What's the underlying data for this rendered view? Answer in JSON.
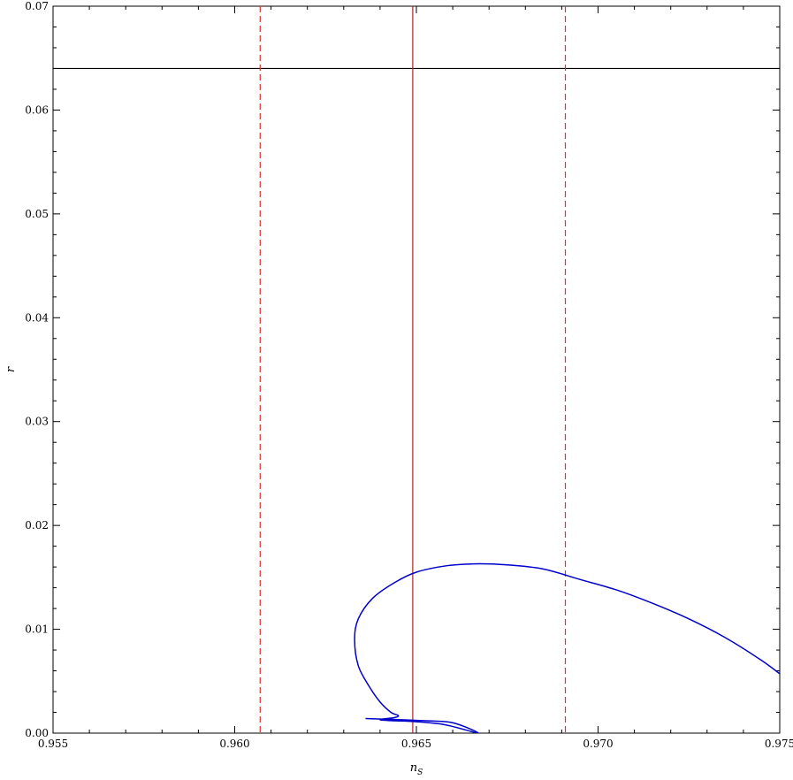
{
  "chart_data": {
    "type": "line",
    "title": "",
    "xlabel": "n",
    "xlabel_sub": "S",
    "ylabel": "r",
    "xlim": [
      0.955,
      0.975
    ],
    "ylim": [
      0.0,
      0.07
    ],
    "x_ticks": [
      "0.955",
      "0.960",
      "0.965",
      "0.970",
      "0.975"
    ],
    "y_ticks": [
      "0.00",
      "0.01",
      "0.02",
      "0.03",
      "0.04",
      "0.05",
      "0.06",
      "0.07"
    ],
    "grid": false,
    "reference_lines": [
      {
        "orientation": "horizontal",
        "value": 0.064,
        "color": "#000000",
        "style": "solid"
      },
      {
        "orientation": "vertical",
        "value": 0.9649,
        "color": "#b22222",
        "style": "solid"
      },
      {
        "orientation": "vertical",
        "value": 0.9607,
        "color": "#e03030",
        "style": "dashed"
      },
      {
        "orientation": "vertical",
        "value": 0.9691,
        "color": "#e03030",
        "style": "dashed"
      }
    ],
    "series": [
      {
        "color": "#0000cc",
        "points": [
          [
            0.9636,
            0.0014
          ],
          [
            0.9645,
            0.0013
          ],
          [
            0.9652,
            0.0012
          ],
          [
            0.966,
            0.001
          ],
          [
            0.9667,
            0.0
          ],
          [
            0.9658,
            0.0008
          ],
          [
            0.965,
            0.0011
          ],
          [
            0.9643,
            0.0012
          ],
          [
            0.964,
            0.0013
          ],
          [
            0.9644,
            0.0015
          ],
          [
            0.9645,
            0.0017
          ],
          [
            0.9643,
            0.002
          ],
          [
            0.964,
            0.003
          ],
          [
            0.9637,
            0.0045
          ],
          [
            0.9634,
            0.0065
          ],
          [
            0.9633,
            0.009
          ],
          [
            0.9634,
            0.011
          ],
          [
            0.9638,
            0.013
          ],
          [
            0.9644,
            0.0145
          ],
          [
            0.965,
            0.0155
          ],
          [
            0.9658,
            0.0161
          ],
          [
            0.9666,
            0.0163
          ],
          [
            0.9675,
            0.0162
          ],
          [
            0.9685,
            0.0158
          ],
          [
            0.9695,
            0.0148
          ],
          [
            0.9705,
            0.0138
          ],
          [
            0.9715,
            0.0125
          ],
          [
            0.9725,
            0.011
          ],
          [
            0.9735,
            0.0092
          ],
          [
            0.9745,
            0.007
          ],
          [
            0.9752,
            0.0052
          ],
          [
            0.9758,
            0.0038
          ]
        ]
      }
    ]
  }
}
